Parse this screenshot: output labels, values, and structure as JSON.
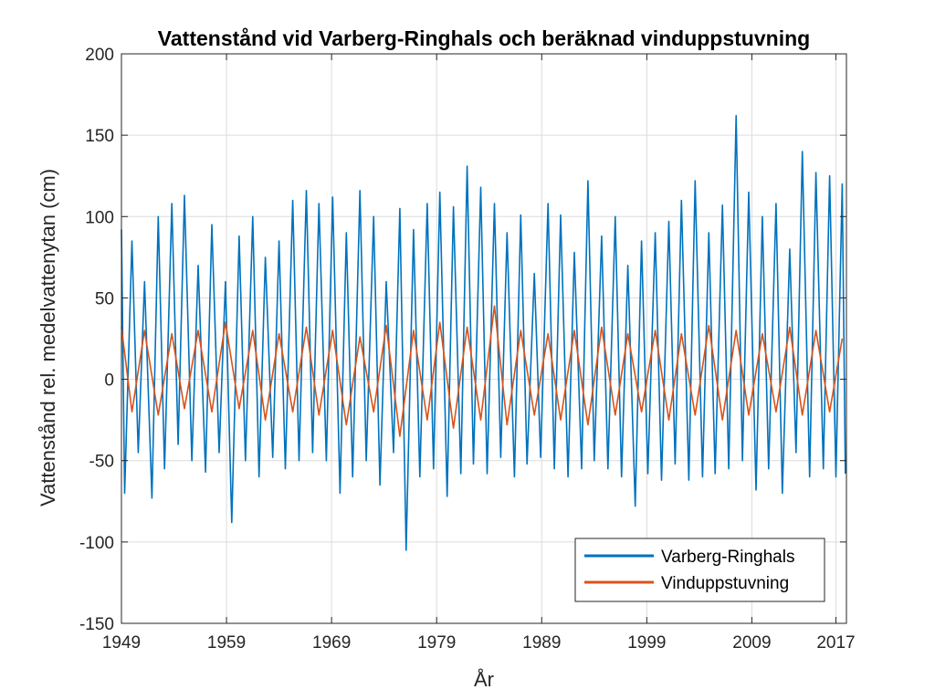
{
  "chart_data": {
    "type": "line",
    "title": "Vattenstånd vid Varberg-Ringhals och beräknad vinduppstuvning",
    "xlabel": "År",
    "ylabel": "Vattenstånd rel. medelvattenytan (cm)",
    "xlim": [
      1949,
      2018
    ],
    "ylim": [
      -150,
      200
    ],
    "xticks": [
      1949,
      1959,
      1969,
      1979,
      1989,
      1999,
      2009,
      2017
    ],
    "xtick_labels": [
      "1949",
      "1959",
      "1969",
      "1979",
      "1989",
      "1999",
      "2009",
      "2017"
    ],
    "yticks": [
      -150,
      -100,
      -50,
      0,
      50,
      100,
      150,
      200
    ],
    "ytick_labels": [
      "-150",
      "-100",
      "-50",
      "0",
      "50",
      "100",
      "150",
      "200"
    ],
    "grid": true,
    "legend_position": "bottom-right",
    "series": [
      {
        "name": "Varberg-Ringhals",
        "color": "#0072BD",
        "x": [
          1949.0,
          1949.3,
          1950.0,
          1950.6,
          1951.2,
          1951.9,
          1952.5,
          1953.1,
          1953.8,
          1954.4,
          1955.0,
          1955.7,
          1956.3,
          1957.0,
          1957.6,
          1958.3,
          1958.9,
          1959.5,
          1960.2,
          1960.8,
          1961.5,
          1962.1,
          1962.7,
          1963.4,
          1964.0,
          1964.6,
          1965.3,
          1965.9,
          1966.6,
          1967.2,
          1967.8,
          1968.5,
          1969.1,
          1969.8,
          1970.4,
          1971.0,
          1971.7,
          1972.3,
          1973.0,
          1973.6,
          1974.2,
          1974.9,
          1975.5,
          1976.1,
          1976.8,
          1977.4,
          1978.1,
          1978.7,
          1979.3,
          1980.0,
          1980.6,
          1981.3,
          1981.9,
          1982.5,
          1983.2,
          1983.8,
          1984.5,
          1985.1,
          1985.7,
          1986.4,
          1987.0,
          1987.6,
          1988.3,
          1988.9,
          1989.6,
          1990.2,
          1990.8,
          1991.5,
          1992.1,
          1992.8,
          1993.4,
          1994.0,
          1994.7,
          1995.3,
          1996.0,
          1996.6,
          1997.2,
          1997.9,
          1998.5,
          1999.1,
          1999.8,
          2000.4,
          2001.1,
          2001.7,
          2002.3,
          2003.0,
          2003.6,
          2004.3,
          2004.9,
          2005.5,
          2006.2,
          2006.8,
          2007.5,
          2008.1,
          2008.7,
          2009.4,
          2010.0,
          2010.6,
          2011.3,
          2011.9,
          2012.6,
          2013.2,
          2013.8,
          2014.5,
          2015.1,
          2015.8,
          2016.4,
          2017.0,
          2017.6,
          2017.9
        ],
        "values": [
          92,
          -70,
          85,
          -45,
          60,
          -73,
          100,
          -55,
          108,
          -40,
          113,
          -50,
          70,
          -57,
          95,
          -45,
          60,
          -88,
          88,
          -50,
          100,
          -60,
          75,
          -48,
          85,
          -55,
          110,
          -50,
          116,
          -45,
          108,
          -50,
          112,
          -70,
          90,
          -60,
          116,
          -50,
          100,
          -65,
          60,
          -45,
          105,
          -105,
          92,
          -60,
          108,
          -55,
          115,
          -72,
          106,
          -58,
          131,
          -52,
          118,
          -58,
          108,
          -48,
          90,
          -60,
          101,
          -52,
          65,
          -48,
          108,
          -55,
          101,
          -60,
          78,
          -55,
          122,
          -50,
          88,
          -55,
          100,
          -60,
          70,
          -78,
          85,
          -58,
          90,
          -62,
          97,
          -52,
          110,
          -62,
          122,
          -60,
          90,
          -58,
          107,
          -55,
          162,
          -50,
          115,
          -68,
          100,
          -55,
          108,
          -70,
          80,
          -45,
          140,
          -60,
          127,
          -55,
          125,
          -60,
          120,
          -58
        ]
      },
      {
        "name": "Vinduppstuvning",
        "color": "#D95319",
        "x": [
          1949.0,
          1950.0,
          1951.2,
          1952.5,
          1953.8,
          1955.0,
          1956.3,
          1957.6,
          1958.9,
          1960.2,
          1961.5,
          1962.7,
          1964.0,
          1965.3,
          1966.6,
          1967.8,
          1969.1,
          1970.4,
          1971.7,
          1973.0,
          1974.2,
          1975.5,
          1976.8,
          1978.1,
          1979.3,
          1980.6,
          1981.9,
          1983.2,
          1984.5,
          1985.7,
          1987.0,
          1988.3,
          1989.6,
          1990.8,
          1992.1,
          1993.4,
          1994.7,
          1996.0,
          1997.2,
          1998.5,
          1999.8,
          2001.1,
          2002.3,
          2003.6,
          2004.9,
          2006.2,
          2007.5,
          2008.7,
          2010.0,
          2011.3,
          2012.6,
          2013.8,
          2015.1,
          2016.4,
          2017.6
        ],
        "values": [
          32,
          -20,
          30,
          -22,
          28,
          -18,
          30,
          -20,
          35,
          -18,
          30,
          -25,
          28,
          -20,
          32,
          -22,
          30,
          -28,
          26,
          -20,
          33,
          -35,
          30,
          -25,
          35,
          -30,
          32,
          -25,
          45,
          -28,
          30,
          -22,
          28,
          -25,
          30,
          -28,
          32,
          -22,
          28,
          -20,
          30,
          -25,
          28,
          -22,
          33,
          -25,
          30,
          -22,
          28,
          -20,
          32,
          -22,
          30,
          -20,
          25
        ]
      }
    ]
  }
}
